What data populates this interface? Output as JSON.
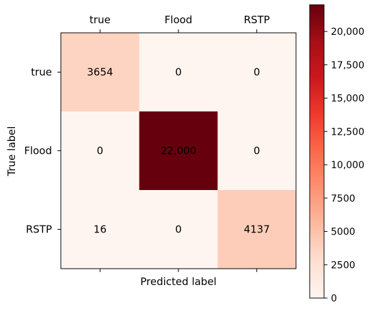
{
  "chart_data": {
    "type": "heatmap",
    "title": "",
    "xlabel": "Predicted label",
    "ylabel": "True label",
    "x_categories": [
      "true",
      "Flood",
      "RSTP"
    ],
    "y_categories": [
      "true",
      "Flood",
      "RSTP"
    ],
    "values": [
      [
        3654,
        0,
        0
      ],
      [
        0,
        22000,
        0
      ],
      [
        16,
        0,
        4137
      ]
    ],
    "cell_labels": [
      [
        "3654",
        "0",
        "0"
      ],
      [
        "0",
        "22,000",
        "0"
      ],
      [
        "16",
        "0",
        "4137"
      ]
    ],
    "colormap": "Reds",
    "colorbar": {
      "range": [
        0,
        22000
      ],
      "ticks": [
        0,
        2500,
        5000,
        7500,
        10000,
        12500,
        15000,
        17500,
        20000
      ],
      "tick_labels": [
        "0",
        "2500",
        "5000",
        "7500",
        "10,000",
        "12,500",
        "15,000",
        "17,500",
        "20,000"
      ]
    },
    "grid": false
  }
}
